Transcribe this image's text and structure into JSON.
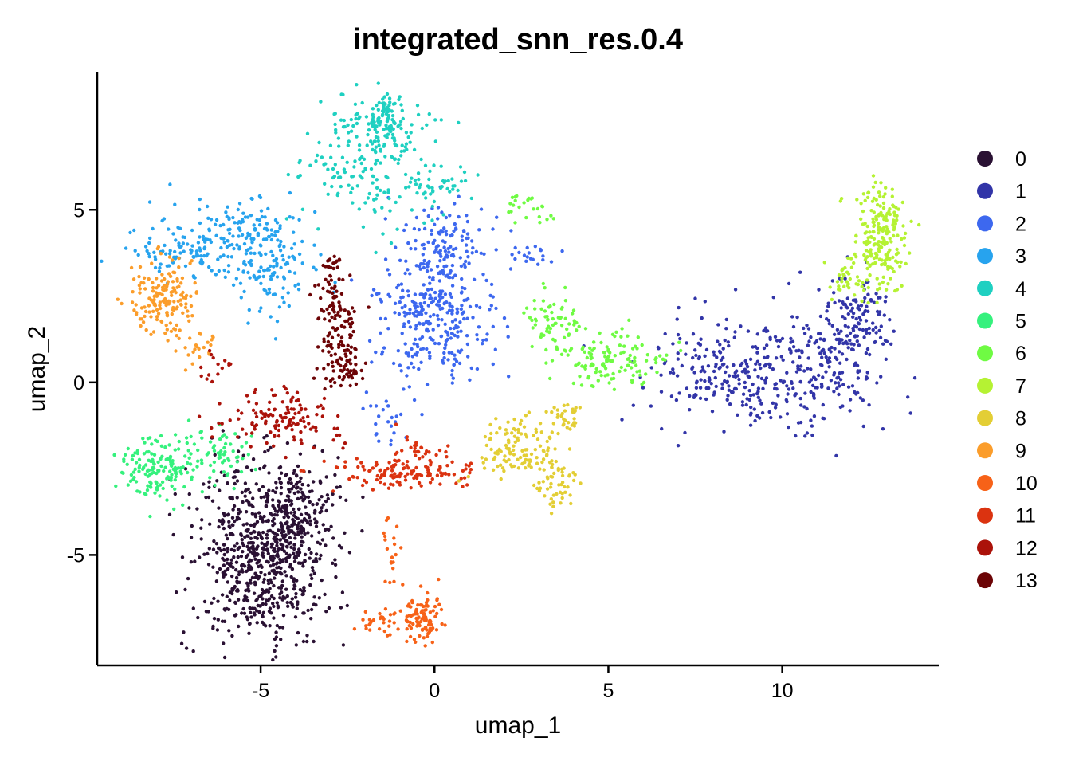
{
  "chart_data": {
    "type": "scatter",
    "title": "integrated_snn_res.0.4",
    "xlabel": "umap_1",
    "ylabel": "umap_2",
    "xlim": [
      -9.7,
      14.5
    ],
    "ylim": [
      -8.2,
      9.0
    ],
    "xticks": [
      -5,
      0,
      5,
      10
    ],
    "yticks": [
      -5,
      0,
      5
    ],
    "xtick_labels": [
      "-5",
      "0",
      "5",
      "10"
    ],
    "ytick_labels": [
      "-5",
      "0",
      "5"
    ],
    "grid": false,
    "legend_position": "right",
    "series": [
      {
        "name": "0",
        "color": "#2a1133",
        "regions": [
          {
            "cx": -5.0,
            "cy": -5.0,
            "sx": 1.0,
            "sy": 1.3,
            "n": 700
          },
          {
            "cx": -4.0,
            "cy": -3.8,
            "sx": 0.5,
            "sy": 0.8,
            "n": 150
          }
        ]
      },
      {
        "name": "1",
        "color": "#3235a8",
        "regions": [
          {
            "cx": 9.0,
            "cy": 0.2,
            "sx": 1.5,
            "sy": 0.8,
            "n": 300
          },
          {
            "cx": 11.5,
            "cy": 0.8,
            "sx": 0.8,
            "sy": 1.0,
            "n": 150
          },
          {
            "cx": 12.3,
            "cy": 2.0,
            "sx": 0.4,
            "sy": 0.6,
            "n": 80
          }
        ]
      },
      {
        "name": "2",
        "color": "#3d68ef",
        "regions": [
          {
            "cx": 0.0,
            "cy": 1.8,
            "sx": 0.9,
            "sy": 0.9,
            "n": 300
          },
          {
            "cx": 0.3,
            "cy": 4.0,
            "sx": 0.6,
            "sy": 0.6,
            "n": 120
          },
          {
            "cx": 2.8,
            "cy": 3.7,
            "sx": 0.5,
            "sy": 0.2,
            "n": 20
          },
          {
            "cx": -1.3,
            "cy": -1.0,
            "sx": 0.3,
            "sy": 0.4,
            "n": 25
          }
        ]
      },
      {
        "name": "3",
        "color": "#27a3ee",
        "regions": [
          {
            "cx": -5.5,
            "cy": 4.0,
            "sx": 1.0,
            "sy": 0.7,
            "n": 200
          },
          {
            "cx": -7.5,
            "cy": 3.8,
            "sx": 0.6,
            "sy": 0.3,
            "n": 60
          },
          {
            "cx": -4.5,
            "cy": 2.8,
            "sx": 0.5,
            "sy": 0.8,
            "n": 60
          }
        ]
      },
      {
        "name": "4",
        "color": "#1fd0c1",
        "regions": [
          {
            "cx": -1.8,
            "cy": 6.5,
            "sx": 0.9,
            "sy": 0.9,
            "n": 200
          },
          {
            "cx": -1.4,
            "cy": 7.6,
            "sx": 0.3,
            "sy": 0.4,
            "n": 80
          },
          {
            "cx": 0.0,
            "cy": 5.7,
            "sx": 0.5,
            "sy": 0.3,
            "n": 40
          }
        ]
      },
      {
        "name": "5",
        "color": "#35f17d",
        "regions": [
          {
            "cx": -7.8,
            "cy": -2.5,
            "sx": 0.6,
            "sy": 0.45,
            "n": 150
          },
          {
            "cx": -6.3,
            "cy": -2.0,
            "sx": 0.5,
            "sy": 0.35,
            "n": 60
          }
        ]
      },
      {
        "name": "6",
        "color": "#6ffb43",
        "regions": [
          {
            "cx": 5.2,
            "cy": 0.7,
            "sx": 0.8,
            "sy": 0.4,
            "n": 130
          },
          {
            "cx": 3.4,
            "cy": 1.8,
            "sx": 0.4,
            "sy": 0.4,
            "n": 60
          },
          {
            "cx": 2.7,
            "cy": 5.0,
            "sx": 0.4,
            "sy": 0.2,
            "n": 25
          }
        ]
      },
      {
        "name": "7",
        "color": "#b5f233",
        "regions": [
          {
            "cx": 12.8,
            "cy": 4.2,
            "sx": 0.4,
            "sy": 0.7,
            "n": 200
          },
          {
            "cx": 12.0,
            "cy": 3.0,
            "sx": 0.3,
            "sy": 0.4,
            "n": 40
          }
        ]
      },
      {
        "name": "8",
        "color": "#e3ce35",
        "regions": [
          {
            "cx": 2.5,
            "cy": -2.0,
            "sx": 0.6,
            "sy": 0.5,
            "n": 120
          },
          {
            "cx": 3.5,
            "cy": -3.0,
            "sx": 0.3,
            "sy": 0.4,
            "n": 50
          },
          {
            "cx": 3.8,
            "cy": -1.0,
            "sx": 0.3,
            "sy": 0.2,
            "n": 30
          }
        ]
      },
      {
        "name": "9",
        "color": "#fb9d2b",
        "regions": [
          {
            "cx": -7.8,
            "cy": 2.4,
            "sx": 0.5,
            "sy": 0.6,
            "n": 160
          },
          {
            "cx": -6.8,
            "cy": 1.0,
            "sx": 0.3,
            "sy": 0.3,
            "n": 20
          }
        ]
      },
      {
        "name": "10",
        "color": "#f76218",
        "regions": [
          {
            "cx": -0.3,
            "cy": -6.8,
            "sx": 0.25,
            "sy": 0.35,
            "n": 90
          },
          {
            "cx": -1.3,
            "cy": -6.9,
            "sx": 0.6,
            "sy": 0.2,
            "n": 40
          },
          {
            "cx": -1.2,
            "cy": -4.6,
            "sx": 0.2,
            "sy": 0.8,
            "n": 20
          }
        ]
      },
      {
        "name": "11",
        "color": "#db3310",
        "regions": [
          {
            "cx": -0.8,
            "cy": -2.6,
            "sx": 1.1,
            "sy": 0.2,
            "n": 130
          },
          {
            "cx": -0.5,
            "cy": -2.1,
            "sx": 0.4,
            "sy": 0.3,
            "n": 30
          }
        ]
      },
      {
        "name": "12",
        "color": "#ab120a",
        "regions": [
          {
            "cx": -4.5,
            "cy": -1.1,
            "sx": 0.9,
            "sy": 0.4,
            "n": 130
          },
          {
            "cx": -6.3,
            "cy": 0.5,
            "sx": 0.3,
            "sy": 0.3,
            "n": 15
          }
        ]
      },
      {
        "name": "13",
        "color": "#6c0406",
        "regions": [
          {
            "cx": -2.8,
            "cy": 1.5,
            "sx": 0.3,
            "sy": 0.7,
            "n": 110
          },
          {
            "cx": -2.5,
            "cy": 0.4,
            "sx": 0.3,
            "sy": 0.3,
            "n": 40
          },
          {
            "cx": -2.9,
            "cy": 3.0,
            "sx": 0.15,
            "sy": 0.4,
            "n": 30
          }
        ]
      }
    ]
  }
}
